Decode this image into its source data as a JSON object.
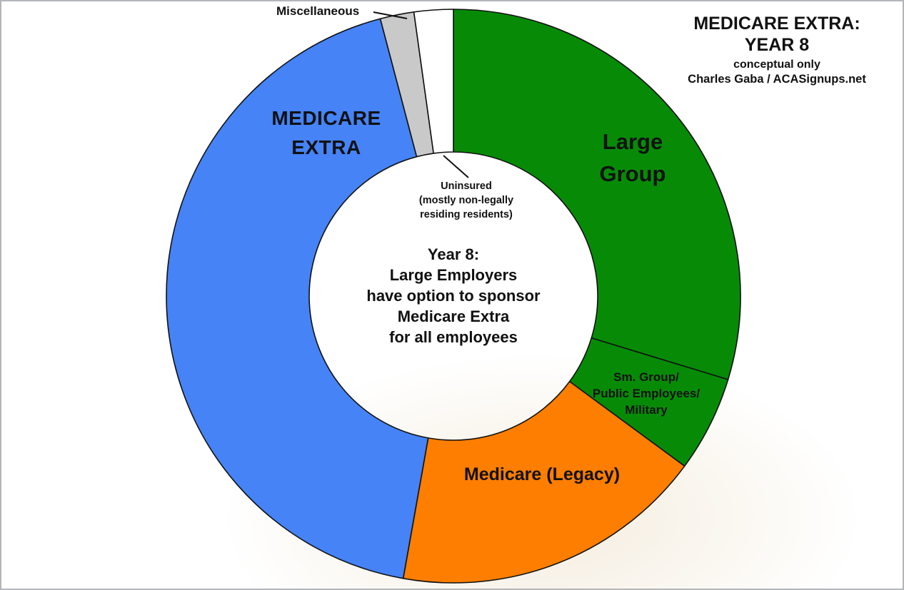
{
  "header": {
    "title_line1": "MEDICARE EXTRA:",
    "title_line2": "YEAR 8",
    "subtitle": "conceptual only",
    "credit": "Charles Gaba / ACASignups.net"
  },
  "center_note": {
    "line1": "Year 8:",
    "line2": "Large Employers",
    "line3": "have option to sponsor",
    "line4": "Medicare Extra",
    "line5": "for all employees"
  },
  "slice_labels": {
    "large_group": {
      "line1": "Large",
      "line2": "Group"
    },
    "medicare_extra": {
      "line1": "MEDICARE",
      "line2": "EXTRA"
    },
    "sm_group": {
      "line1": "Sm. Group/",
      "line2": "Public Employees/",
      "line3": "Military"
    },
    "medicare_legacy": "Medicare (Legacy)",
    "miscellaneous": "Miscellaneous",
    "uninsured": {
      "line1": "Uninsured",
      "line2": "(mostly non-legally",
      "line3": "residing residents)"
    }
  },
  "colors": {
    "green": "#078b07",
    "blue": "#4583f7",
    "orange": "#fd7e00",
    "gray": "#c9c9c9",
    "white": "#ffffff",
    "outline": "#111111"
  },
  "chart_data": {
    "type": "pie",
    "variant": "donut",
    "title": "MEDICARE EXTRA: YEAR 8",
    "subtitle": "conceptual only",
    "source": "Charles Gaba / ACASignups.net",
    "direction": "clockwise",
    "start_angle_deg": 0,
    "center_annotation": "Year 8: Large Employers have option to sponsor Medicare Extra for all employees",
    "uninsured_annotation": "Uninsured (mostly non-legally residing residents)",
    "slices": [
      {
        "id": "large-group",
        "label": "Large Group",
        "value_pct": 29.7,
        "color": "#078b07"
      },
      {
        "id": "sm-group",
        "label": "Sm. Group/Public Employees/Military",
        "value_pct": 5.4,
        "color": "#078b07"
      },
      {
        "id": "medicare-legacy",
        "label": "Medicare (Legacy)",
        "value_pct": 17.7,
        "color": "#fd7e00"
      },
      {
        "id": "medicare-extra",
        "label": "MEDICARE EXTRA",
        "value_pct": 43.1,
        "color": "#4583f7"
      },
      {
        "id": "miscellaneous",
        "label": "Miscellaneous",
        "value_pct": 1.9,
        "color": "#c9c9c9"
      },
      {
        "id": "uninsured",
        "label": "Uninsured (mostly non-legally residing residents)",
        "value_pct": 2.2,
        "color": "#ffffff"
      }
    ]
  }
}
